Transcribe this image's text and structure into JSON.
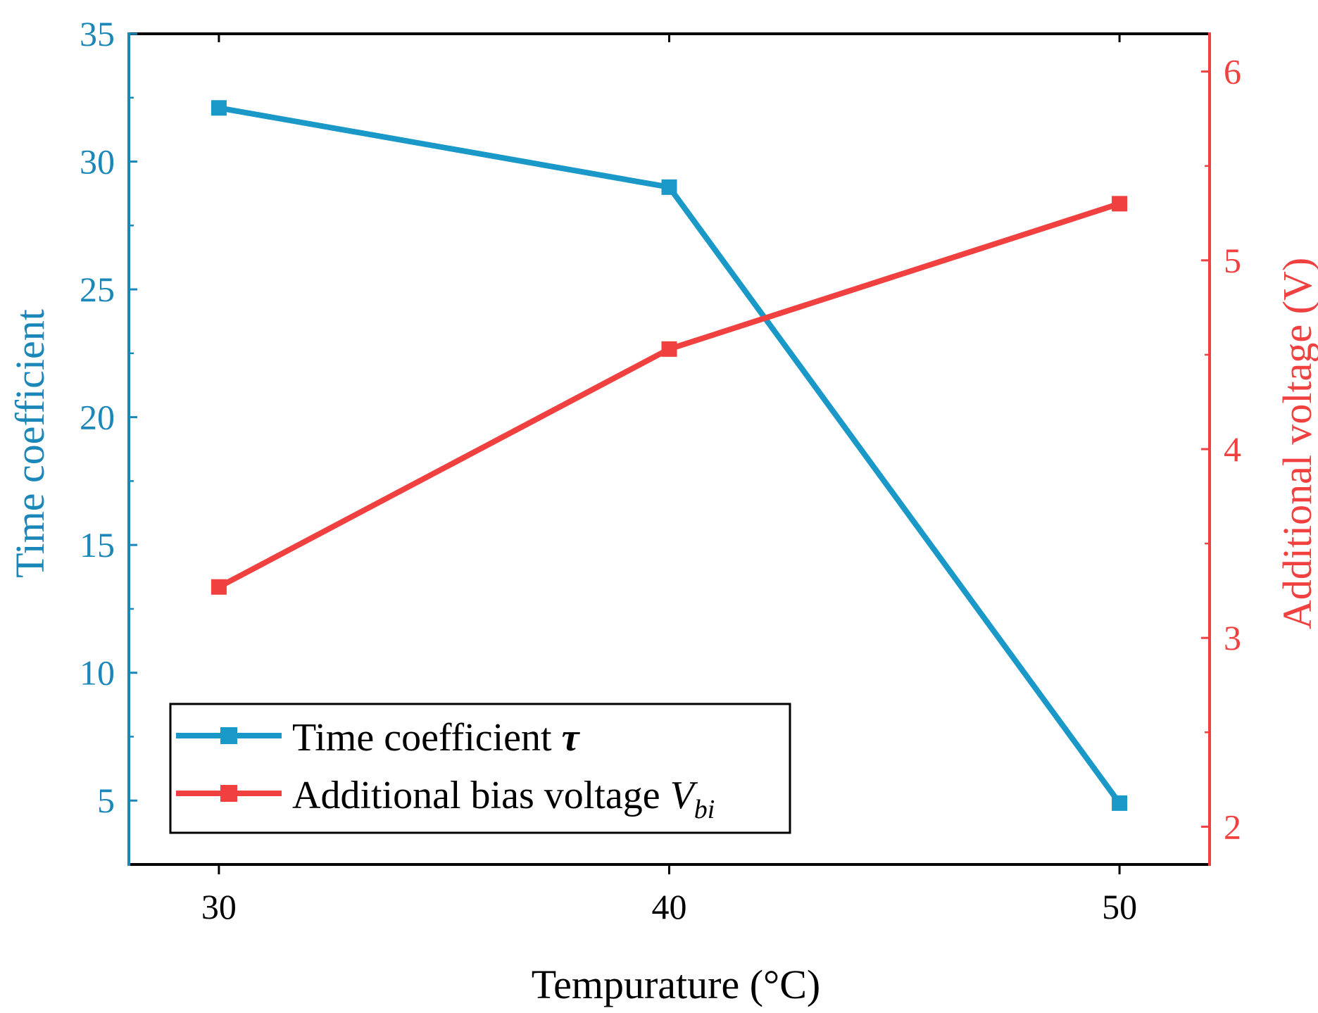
{
  "chart_data": {
    "type": "line",
    "title": "",
    "xlabel": "Tempurature (°C)",
    "ylabel_left": "Time coefficient",
    "ylabel_right": "Additional voltage (V)",
    "x": [
      30,
      40,
      50
    ],
    "xlim": [
      28,
      52
    ],
    "xticks": [
      30,
      40,
      50
    ],
    "ylim_left": [
      2.5,
      35
    ],
    "yticks_left": [
      5,
      10,
      15,
      20,
      25,
      30,
      35
    ],
    "ylim_right": [
      1.8,
      6.2
    ],
    "yticks_right": [
      2,
      3,
      4,
      5,
      6
    ],
    "grid": false,
    "legend_position": "bottom-left",
    "series": [
      {
        "name": "Time coefficient τ",
        "name_text": "Time coefficient ",
        "name_symbol": "τ",
        "axis": "left",
        "color": "#1a98c8",
        "marker": "square",
        "values": [
          32.1,
          29.0,
          4.9
        ]
      },
      {
        "name": "Additional bias voltage Vbi",
        "name_text": "Additional bias voltage ",
        "name_symbol": "V",
        "name_subscript": "bi",
        "axis": "right",
        "color": "#f04040",
        "marker": "square",
        "values": [
          3.27,
          4.53,
          5.3
        ]
      }
    ],
    "colors": {
      "left_axis": "#1a87b8",
      "right_axis": "#f04040",
      "frame": "#000000"
    }
  }
}
